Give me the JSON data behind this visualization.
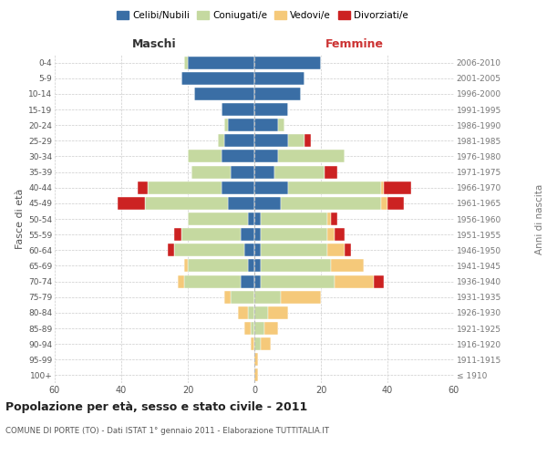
{
  "age_groups": [
    "100+",
    "95-99",
    "90-94",
    "85-89",
    "80-84",
    "75-79",
    "70-74",
    "65-69",
    "60-64",
    "55-59",
    "50-54",
    "45-49",
    "40-44",
    "35-39",
    "30-34",
    "25-29",
    "20-24",
    "15-19",
    "10-14",
    "5-9",
    "0-4"
  ],
  "birth_years": [
    "≤ 1910",
    "1911-1915",
    "1916-1920",
    "1921-1925",
    "1926-1930",
    "1931-1935",
    "1936-1940",
    "1941-1945",
    "1946-1950",
    "1951-1955",
    "1956-1960",
    "1961-1965",
    "1966-1970",
    "1971-1975",
    "1976-1980",
    "1981-1985",
    "1986-1990",
    "1991-1995",
    "1996-2000",
    "2001-2005",
    "2006-2010"
  ],
  "colors": {
    "celibi": "#3a6ea5",
    "coniugati": "#c5d9a0",
    "vedovi": "#f5c97a",
    "divorziati": "#cc2222"
  },
  "maschi": {
    "celibi": [
      0,
      0,
      0,
      0,
      0,
      0,
      4,
      2,
      3,
      4,
      2,
      8,
      10,
      7,
      10,
      9,
      8,
      10,
      18,
      22,
      20
    ],
    "coniugati": [
      0,
      0,
      0,
      1,
      2,
      7,
      17,
      18,
      21,
      18,
      18,
      25,
      22,
      12,
      10,
      2,
      1,
      0,
      0,
      0,
      1
    ],
    "vedovi": [
      0,
      0,
      1,
      2,
      3,
      2,
      2,
      1,
      0,
      0,
      0,
      0,
      0,
      0,
      0,
      0,
      0,
      0,
      0,
      0,
      0
    ],
    "divorziati": [
      0,
      0,
      0,
      0,
      0,
      0,
      0,
      0,
      2,
      2,
      0,
      8,
      3,
      0,
      0,
      0,
      0,
      0,
      0,
      0,
      0
    ]
  },
  "femmine": {
    "celibi": [
      0,
      0,
      0,
      0,
      0,
      0,
      2,
      2,
      2,
      2,
      2,
      8,
      10,
      6,
      7,
      10,
      7,
      10,
      14,
      15,
      20
    ],
    "coniugati": [
      0,
      0,
      2,
      3,
      4,
      8,
      22,
      21,
      20,
      20,
      20,
      30,
      28,
      15,
      20,
      5,
      2,
      0,
      0,
      0,
      0
    ],
    "vedovi": [
      1,
      1,
      3,
      4,
      6,
      12,
      12,
      10,
      5,
      2,
      1,
      2,
      1,
      0,
      0,
      0,
      0,
      0,
      0,
      0,
      0
    ],
    "divorziati": [
      0,
      0,
      0,
      0,
      0,
      0,
      3,
      0,
      2,
      3,
      2,
      5,
      8,
      4,
      0,
      2,
      0,
      0,
      0,
      0,
      0
    ]
  },
  "xlim": 60,
  "title": "Popolazione per età, sesso e stato civile - 2011",
  "subtitle": "COMUNE DI PORTE (TO) - Dati ISTAT 1° gennaio 2011 - Elaborazione TUTTITALIA.IT",
  "ylabel_left": "Fasce di età",
  "ylabel_right": "Anni di nascita",
  "xlabel_left": "Maschi",
  "xlabel_right": "Femmine",
  "legend_labels": [
    "Celibi/Nubili",
    "Coniugati/e",
    "Vedovi/e",
    "Divorziati/e"
  ],
  "background_color": "#ffffff",
  "grid_color": "#cccccc"
}
